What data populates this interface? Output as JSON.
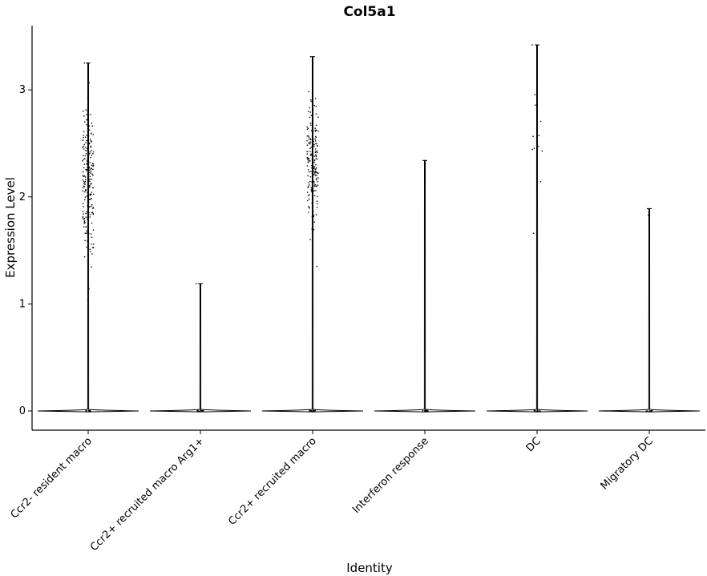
{
  "chart_data": {
    "type": "violin",
    "title": "Col5a1",
    "xlabel": "Identity",
    "ylabel": "Expression Level",
    "ylim": [
      -0.18,
      3.6
    ],
    "y_ticks": [
      0,
      1,
      2,
      3
    ],
    "grid": false,
    "legend": "none",
    "categories": [
      "Ccr2- resident macro",
      "Ccr2+ recruited macro Arg1+",
      "Ccr2+ recruited macro",
      "Interferon response",
      "DC",
      "Migratory DC"
    ],
    "series": [
      {
        "category": "Ccr2- resident macro",
        "max": 3.25,
        "nonzero_points": 220,
        "nonzero_range": [
          1.03,
          3.25
        ]
      },
      {
        "category": "Ccr2+ recruited macro Arg1+",
        "max": 1.19,
        "nonzero_points": 1,
        "nonzero_range": [
          1.19,
          1.19
        ]
      },
      {
        "category": "Ccr2+ recruited macro",
        "max": 3.31,
        "nonzero_points": 180,
        "nonzero_range": [
          1.35,
          3.31
        ]
      },
      {
        "category": "Interferon response",
        "max": 2.34,
        "nonzero_points": 1,
        "nonzero_range": [
          2.34,
          2.34
        ]
      },
      {
        "category": "DC",
        "max": 3.42,
        "nonzero_points": 12,
        "nonzero_range": [
          1.66,
          3.42
        ]
      },
      {
        "category": "Migratory DC",
        "max": 1.89,
        "nonzero_points": 2,
        "nonzero_range": [
          1.83,
          1.89
        ]
      }
    ]
  }
}
